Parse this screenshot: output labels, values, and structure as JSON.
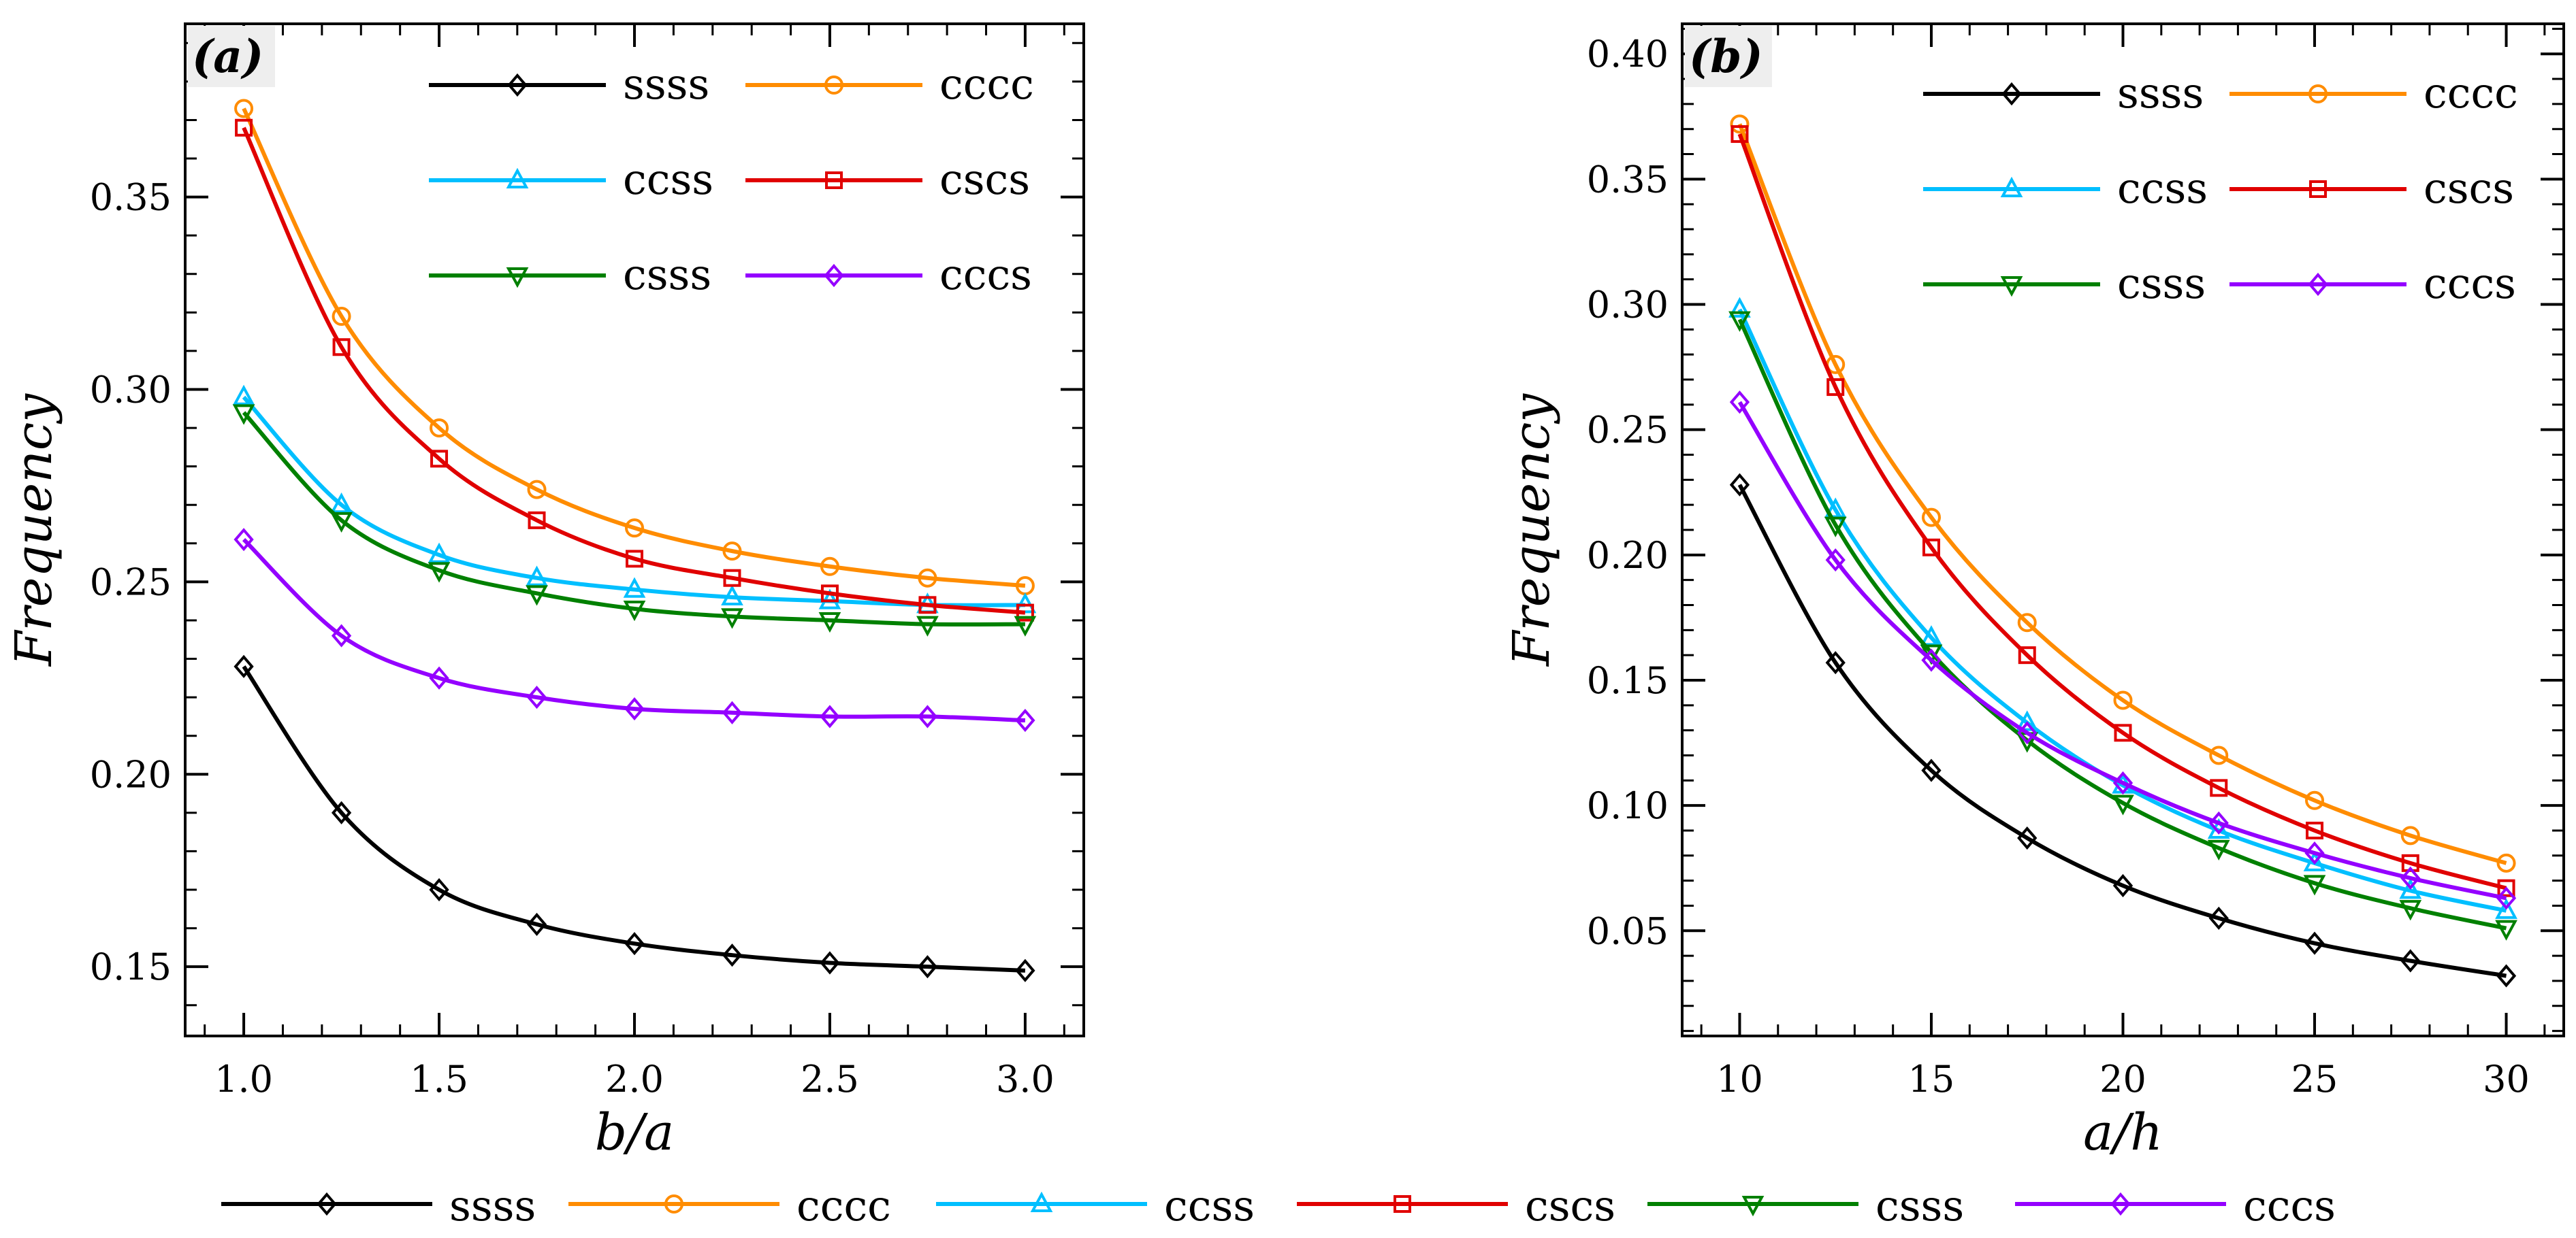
{
  "figure": {
    "bottom_legend": [
      {
        "label": "ssss",
        "color": "#000000",
        "marker": "diamond"
      },
      {
        "label": "cccc",
        "color": "#ff8c00",
        "marker": "circle"
      },
      {
        "label": "ccss",
        "color": "#00bfff",
        "marker": "triangle-up"
      },
      {
        "label": "cscs",
        "color": "#e00000",
        "marker": "square"
      },
      {
        "label": "csss",
        "color": "#008000",
        "marker": "triangle-down"
      },
      {
        "label": "cccs",
        "color": "#9400ff",
        "marker": "diamond"
      }
    ]
  },
  "chart_data": [
    {
      "type": "line",
      "panel_tag": "(a)",
      "xlabel": "b/a",
      "ylabel": "Frequency",
      "xlim": [
        0.85,
        3.15
      ],
      "ylim": [
        0.132,
        0.395
      ],
      "xticks": [
        1.0,
        1.5,
        2.0,
        2.5,
        3.0
      ],
      "xtick_labels": [
        "1.0",
        "1.5",
        "2.0",
        "2.5",
        "3.0"
      ],
      "yticks": [
        0.15,
        0.2,
        0.25,
        0.3,
        0.35
      ],
      "ytick_labels": [
        "0.15",
        "0.20",
        "0.25",
        "0.30",
        "0.35"
      ],
      "legend": "top-right, 3 rows x 2 columns",
      "x": [
        1.0,
        1.25,
        1.5,
        1.75,
        2.0,
        2.25,
        2.5,
        2.75,
        3.0
      ],
      "series": [
        {
          "name": "ssss",
          "color": "#000000",
          "marker": "diamond",
          "values": [
            0.228,
            0.19,
            0.17,
            0.161,
            0.156,
            0.153,
            0.151,
            0.15,
            0.149
          ]
        },
        {
          "name": "cccc",
          "color": "#ff8c00",
          "marker": "circle",
          "values": [
            0.373,
            0.319,
            0.29,
            0.274,
            0.264,
            0.258,
            0.254,
            0.251,
            0.249
          ]
        },
        {
          "name": "ccss",
          "color": "#00bfff",
          "marker": "triangle-up",
          "values": [
            0.298,
            0.27,
            0.257,
            0.251,
            0.248,
            0.246,
            0.245,
            0.244,
            0.244
          ]
        },
        {
          "name": "cscs",
          "color": "#e00000",
          "marker": "square",
          "values": [
            0.368,
            0.311,
            0.282,
            0.266,
            0.256,
            0.251,
            0.247,
            0.244,
            0.242
          ]
        },
        {
          "name": "csss",
          "color": "#008000",
          "marker": "triangle-down",
          "values": [
            0.294,
            0.266,
            0.253,
            0.247,
            0.243,
            0.241,
            0.24,
            0.239,
            0.239
          ]
        },
        {
          "name": "cccs",
          "color": "#9400ff",
          "marker": "diamond",
          "values": [
            0.261,
            0.236,
            0.225,
            0.22,
            0.217,
            0.216,
            0.215,
            0.215,
            0.214
          ]
        }
      ]
    },
    {
      "type": "line",
      "panel_tag": "(b)",
      "xlabel": "a/h",
      "ylabel": "Frequency",
      "xlim": [
        8.5,
        31.5
      ],
      "ylim": [
        0.008,
        0.412
      ],
      "xticks": [
        10,
        15,
        20,
        25,
        30
      ],
      "xtick_labels": [
        "10",
        "15",
        "20",
        "25",
        "30"
      ],
      "yticks": [
        0.05,
        0.1,
        0.15,
        0.2,
        0.25,
        0.3,
        0.35,
        0.4
      ],
      "ytick_labels": [
        "0.05",
        "0.10",
        "0.15",
        "0.20",
        "0.25",
        "0.30",
        "0.35",
        "0.40"
      ],
      "legend": "top-right, 3 rows x 2 columns",
      "x": [
        10,
        12.5,
        15,
        17.5,
        20,
        22.5,
        25,
        27.5,
        30
      ],
      "series": [
        {
          "name": "ssss",
          "color": "#000000",
          "marker": "diamond",
          "values": [
            0.228,
            0.157,
            0.114,
            0.087,
            0.068,
            0.055,
            0.045,
            0.038,
            0.032
          ]
        },
        {
          "name": "cccc",
          "color": "#ff8c00",
          "marker": "circle",
          "values": [
            0.372,
            0.276,
            0.215,
            0.173,
            0.142,
            0.12,
            0.102,
            0.088,
            0.077
          ]
        },
        {
          "name": "ccss",
          "color": "#00bfff",
          "marker": "triangle-up",
          "values": [
            0.298,
            0.218,
            0.167,
            0.133,
            0.108,
            0.09,
            0.077,
            0.066,
            0.058
          ]
        },
        {
          "name": "cscs",
          "color": "#e00000",
          "marker": "square",
          "values": [
            0.368,
            0.267,
            0.203,
            0.16,
            0.129,
            0.107,
            0.09,
            0.077,
            0.067
          ]
        },
        {
          "name": "csss",
          "color": "#008000",
          "marker": "triangle-down",
          "values": [
            0.294,
            0.212,
            0.161,
            0.126,
            0.101,
            0.083,
            0.069,
            0.059,
            0.051
          ]
        },
        {
          "name": "cccs",
          "color": "#9400ff",
          "marker": "diamond",
          "values": [
            0.261,
            0.198,
            0.158,
            0.129,
            0.109,
            0.093,
            0.081,
            0.071,
            0.063
          ]
        }
      ]
    }
  ]
}
